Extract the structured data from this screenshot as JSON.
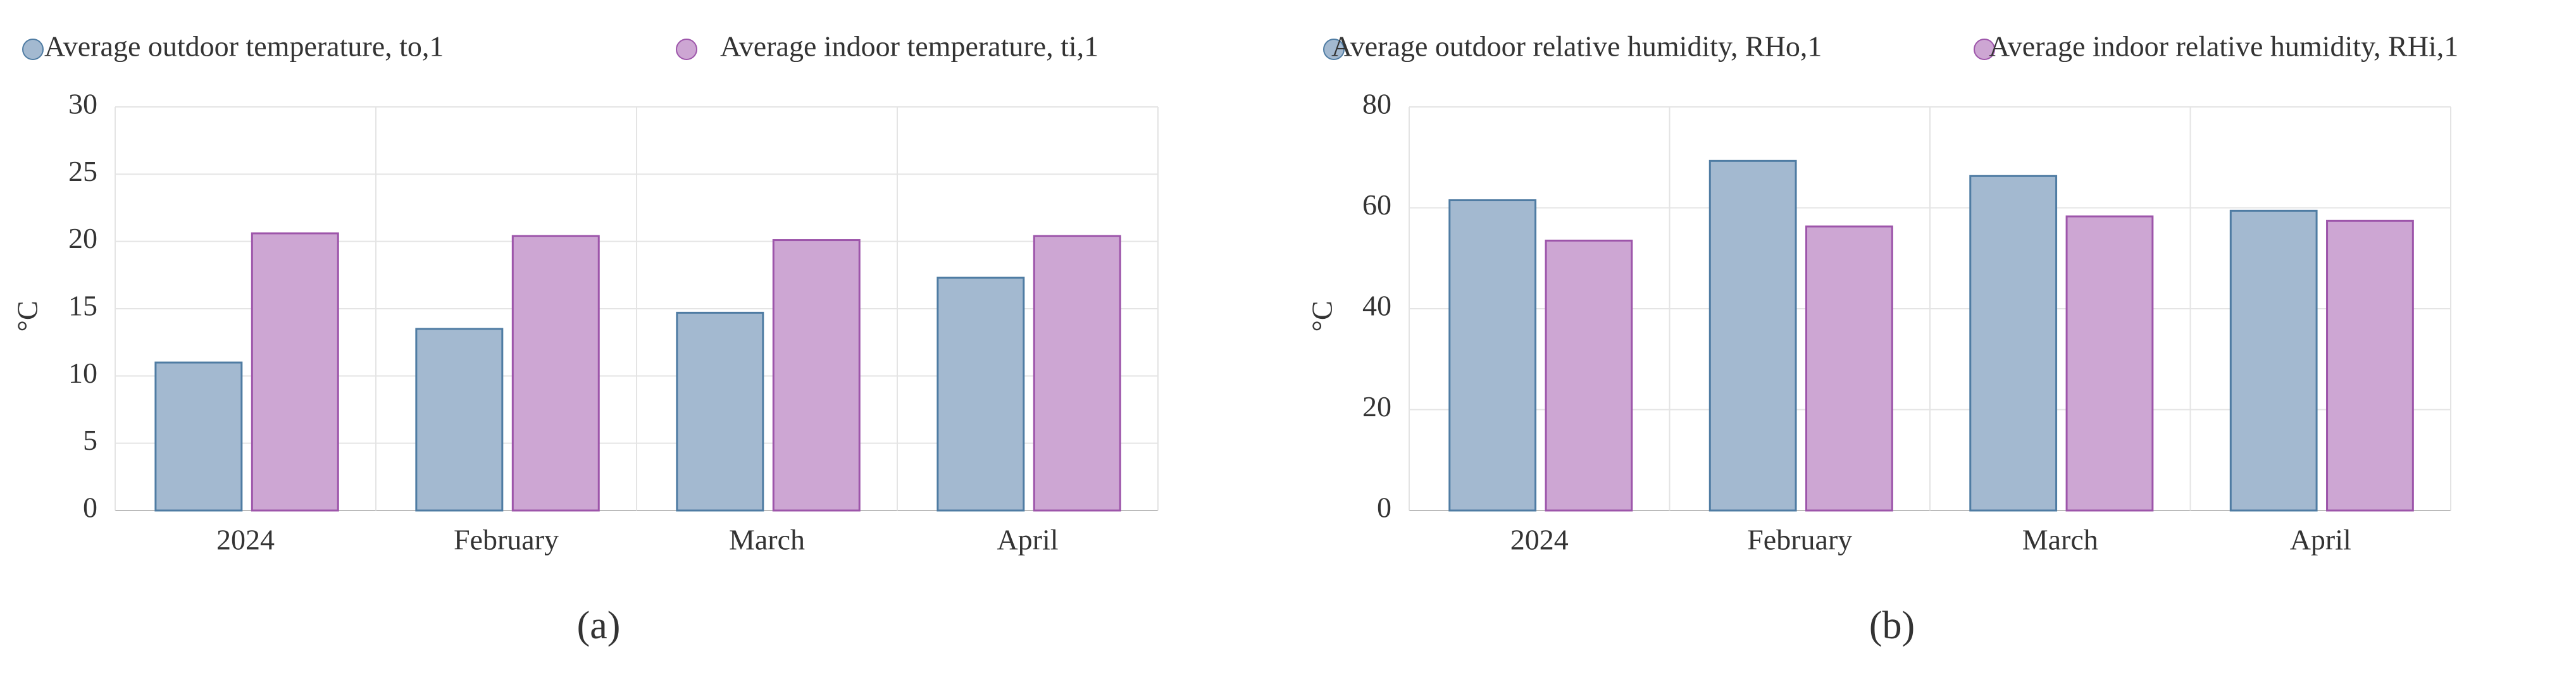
{
  "chart_data": [
    {
      "type": "bar",
      "panel_label": "(a)",
      "y_label": "°C",
      "categories": [
        "2024",
        "February",
        "March",
        "April"
      ],
      "series": [
        {
          "name": "Average outdoor temperature, to,1",
          "color": "#a3b9d0",
          "values": [
            11,
            13.5,
            14.7,
            17.3
          ]
        },
        {
          "name": "Average indoor temperature, ti,1",
          "color": "#cda6d3",
          "values": [
            20.6,
            20.4,
            20.1,
            20.4
          ]
        }
      ],
      "ylim": [
        0,
        30
      ],
      "yticks": [
        0,
        5,
        10,
        15,
        20,
        25,
        30
      ],
      "grid": true
    },
    {
      "type": "bar",
      "panel_label": "(b)",
      "y_label": "°C",
      "categories": [
        "2024",
        "February",
        "March",
        "April"
      ],
      "series": [
        {
          "name": "Average outdoor relative humidity, RHo,1",
          "color": "#a3b9d0",
          "values": [
            61.5,
            69.3,
            66.3,
            59.4
          ]
        },
        {
          "name": "Average indoor relative humidity, RHi,1",
          "color": "#cda6d3",
          "values": [
            53.5,
            56.3,
            58.3,
            57.4
          ]
        }
      ],
      "ylim": [
        0,
        80
      ],
      "yticks": [
        0,
        20,
        40,
        60,
        80
      ],
      "grid": true
    }
  ]
}
